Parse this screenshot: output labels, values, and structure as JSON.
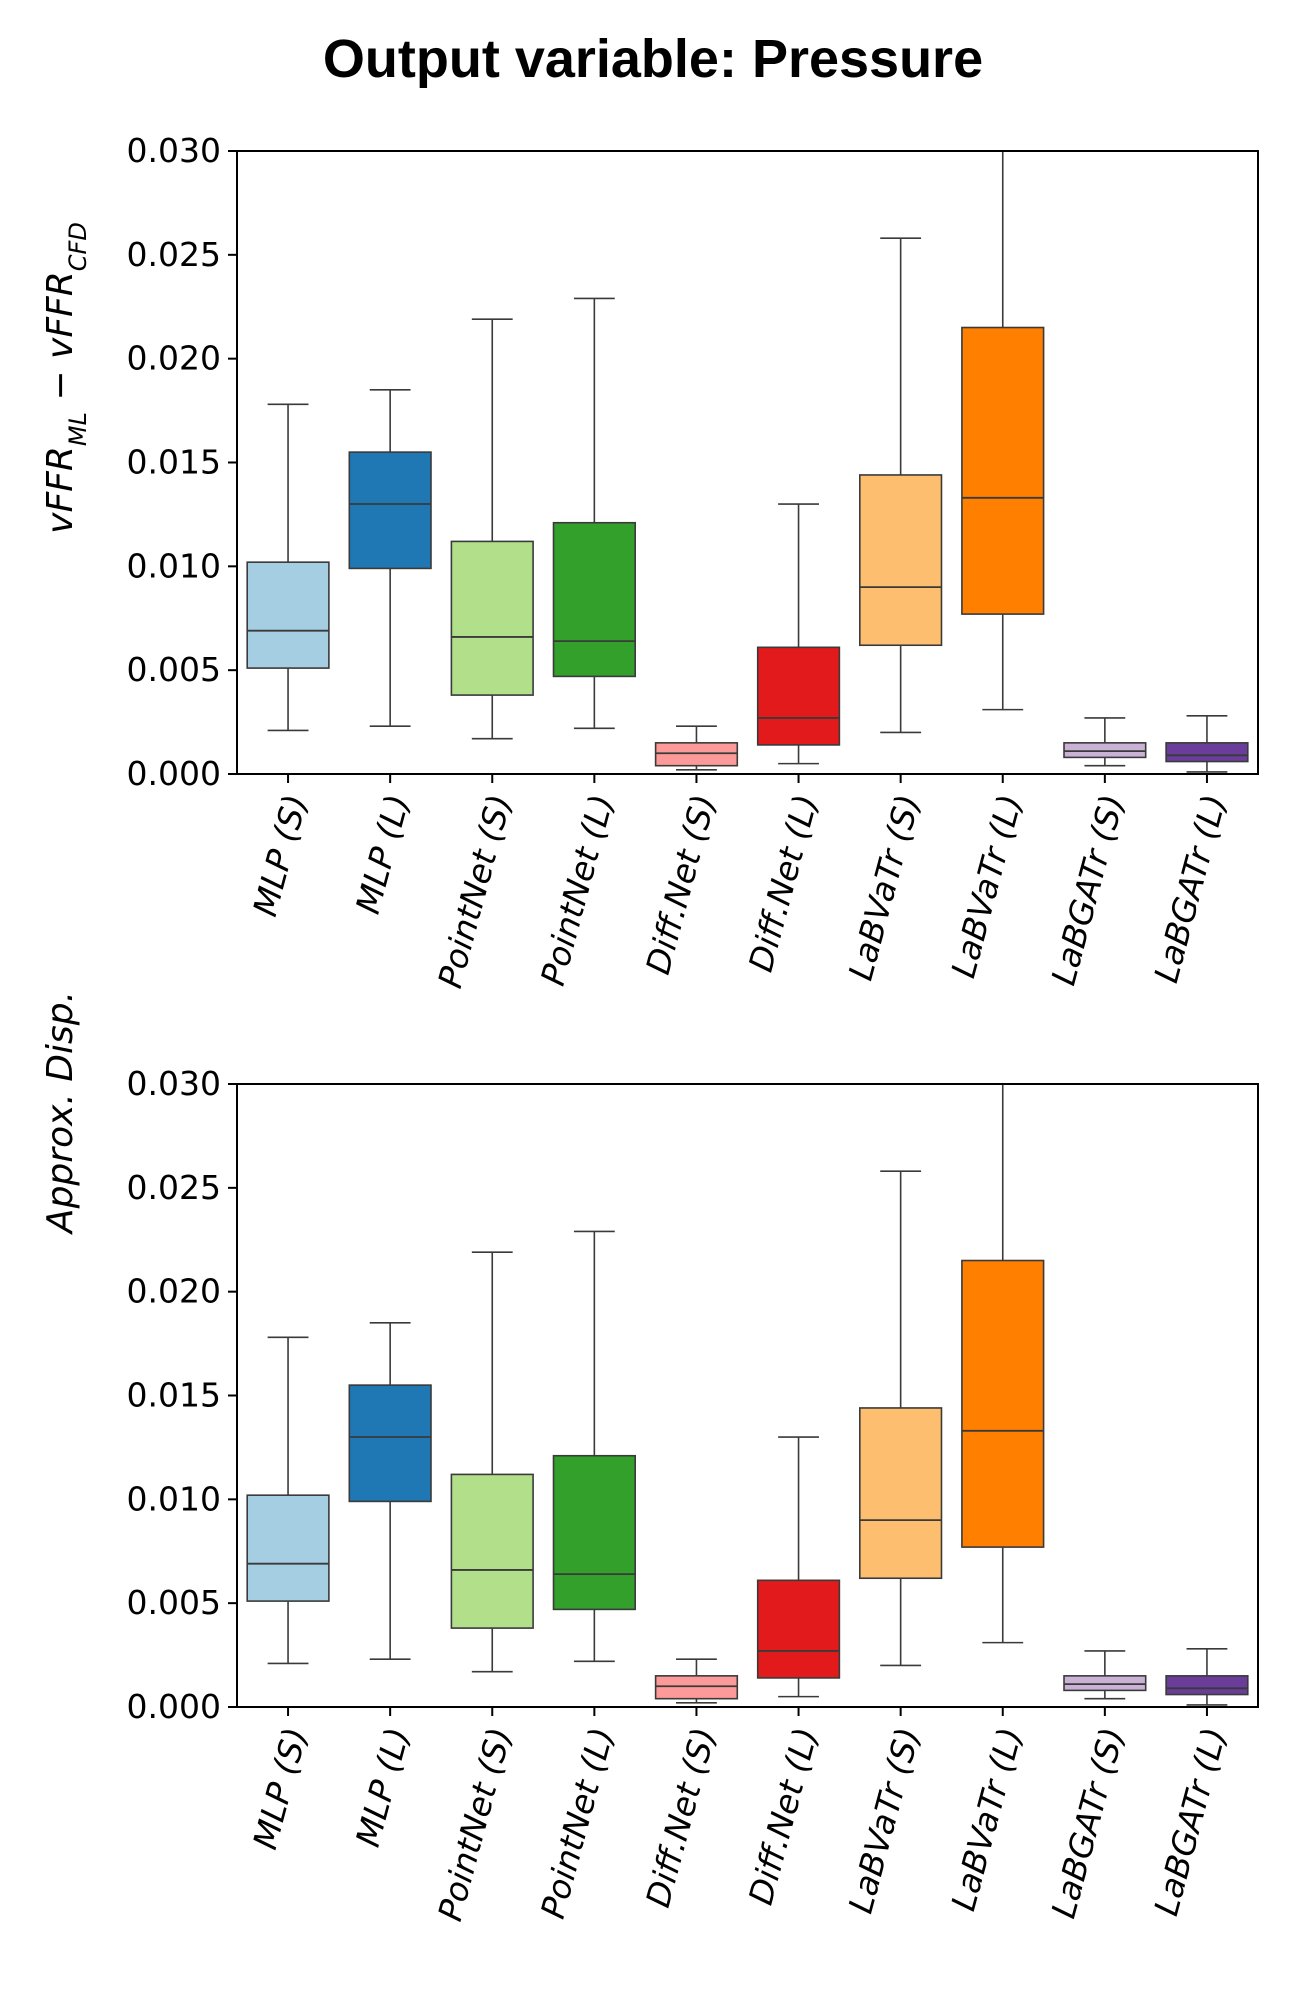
{
  "title": "Output variable: Pressure",
  "chart_data": [
    {
      "type": "box",
      "ylabel": {
        "base1": "vFFR",
        "sub1": "ML",
        "minus": " − ",
        "base2": "vFFR",
        "sub2": "CFD"
      },
      "ylim": [
        0,
        0.03
      ],
      "yticks": [
        "0.000",
        "0.005",
        "0.010",
        "0.015",
        "0.020",
        "0.025",
        "0.030"
      ],
      "categories": [
        "MLP (S)",
        "MLP (L)",
        "PointNet (S)",
        "PointNet (L)",
        "Diff.Net (S)",
        "Diff.Net (L)",
        "LaBVaTr (S)",
        "LaBVaTr (L)",
        "LaBGATr (S)",
        "LaBGATr (L)"
      ],
      "colors": [
        "#a6cee3",
        "#1f78b4",
        "#b2df8a",
        "#33a02c",
        "#fb9a99",
        "#e31a1c",
        "#fdbf6f",
        "#ff7f00",
        "#cab2d6",
        "#6a3d9a"
      ],
      "boxes": [
        {
          "whislo": 0.0021,
          "q1": 0.0051,
          "med": 0.0069,
          "q3": 0.0102,
          "whishi": 0.0178
        },
        {
          "whislo": 0.0023,
          "q1": 0.0099,
          "med": 0.013,
          "q3": 0.0155,
          "whishi": 0.0185
        },
        {
          "whislo": 0.0017,
          "q1": 0.0038,
          "med": 0.0066,
          "q3": 0.0112,
          "whishi": 0.0219
        },
        {
          "whislo": 0.0022,
          "q1": 0.0047,
          "med": 0.0064,
          "q3": 0.0121,
          "whishi": 0.0229
        },
        {
          "whislo": 0.0002,
          "q1": 0.0004,
          "med": 0.001,
          "q3": 0.0015,
          "whishi": 0.0023
        },
        {
          "whislo": 0.0005,
          "q1": 0.0014,
          "med": 0.0027,
          "q3": 0.0061,
          "whishi": 0.013
        },
        {
          "whislo": 0.002,
          "q1": 0.0062,
          "med": 0.009,
          "q3": 0.0144,
          "whishi": 0.0258
        },
        {
          "whislo": 0.0031,
          "q1": 0.0077,
          "med": 0.0133,
          "q3": 0.0215,
          "whishi": 0.03
        },
        {
          "whislo": 0.0004,
          "q1": 0.0008,
          "med": 0.0011,
          "q3": 0.0015,
          "whishi": 0.0027
        },
        {
          "whislo": 0.0001,
          "q1": 0.0006,
          "med": 0.0009,
          "q3": 0.0015,
          "whishi": 0.0028
        }
      ]
    },
    {
      "type": "box",
      "ylabel": {
        "base1": "Approx. Disp."
      },
      "ylim": [
        0,
        0.03
      ],
      "yticks": [
        "0.000",
        "0.005",
        "0.010",
        "0.015",
        "0.020",
        "0.025",
        "0.030"
      ],
      "categories": [
        "MLP (S)",
        "MLP (L)",
        "PointNet (S)",
        "PointNet (L)",
        "Diff.Net (S)",
        "Diff.Net (L)",
        "LaBVaTr (S)",
        "LaBVaTr (L)",
        "LaBGATr (S)",
        "LaBGATr (L)"
      ],
      "colors": [
        "#a6cee3",
        "#1f78b4",
        "#b2df8a",
        "#33a02c",
        "#fb9a99",
        "#e31a1c",
        "#fdbf6f",
        "#ff7f00",
        "#cab2d6",
        "#6a3d9a"
      ],
      "boxes": [
        {
          "whislo": 0.0021,
          "q1": 0.0051,
          "med": 0.0069,
          "q3": 0.0102,
          "whishi": 0.0178
        },
        {
          "whislo": 0.0023,
          "q1": 0.0099,
          "med": 0.013,
          "q3": 0.0155,
          "whishi": 0.0185
        },
        {
          "whislo": 0.0017,
          "q1": 0.0038,
          "med": 0.0066,
          "q3": 0.0112,
          "whishi": 0.0219
        },
        {
          "whislo": 0.0022,
          "q1": 0.0047,
          "med": 0.0064,
          "q3": 0.0121,
          "whishi": 0.0229
        },
        {
          "whislo": 0.0002,
          "q1": 0.0004,
          "med": 0.001,
          "q3": 0.0015,
          "whishi": 0.0023
        },
        {
          "whislo": 0.0005,
          "q1": 0.0014,
          "med": 0.0027,
          "q3": 0.0061,
          "whishi": 0.013
        },
        {
          "whislo": 0.002,
          "q1": 0.0062,
          "med": 0.009,
          "q3": 0.0144,
          "whishi": 0.0258
        },
        {
          "whislo": 0.0031,
          "q1": 0.0077,
          "med": 0.0133,
          "q3": 0.0215,
          "whishi": 0.03
        },
        {
          "whislo": 0.0004,
          "q1": 0.0008,
          "med": 0.0011,
          "q3": 0.0015,
          "whishi": 0.0027
        },
        {
          "whislo": 0.0001,
          "q1": 0.0006,
          "med": 0.0009,
          "q3": 0.0015,
          "whishi": 0.0028
        }
      ]
    }
  ]
}
